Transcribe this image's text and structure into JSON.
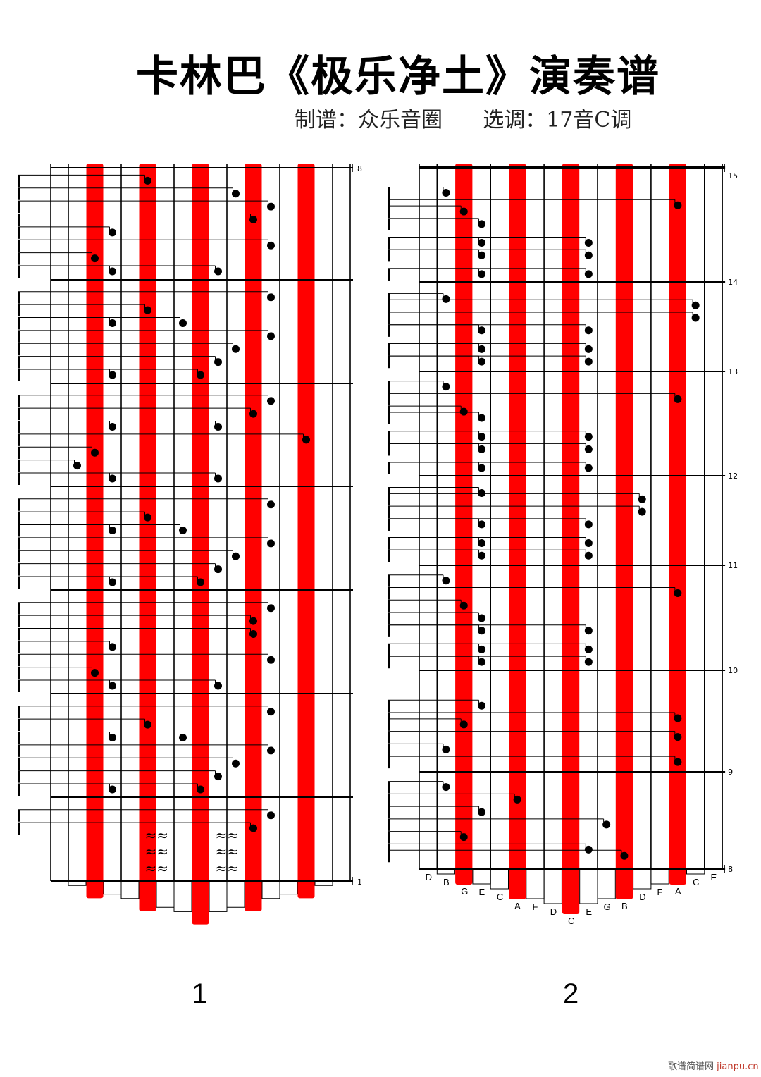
{
  "title": "卡林巴《极乐净土》演奏谱",
  "subtitle": {
    "arranger": "制谱：众乐音圈",
    "key": "选调：17音C调"
  },
  "colors": {
    "tine_highlight": "#ff0000",
    "line": "#000000",
    "note": "#000000"
  },
  "tine_labels": [
    "D",
    "B",
    "G",
    "E",
    "C",
    "A",
    "F",
    "D",
    "C",
    "E",
    "G",
    "B",
    "D",
    "F",
    "A",
    "C",
    "E"
  ],
  "highlighted_tines": [
    2,
    5,
    8,
    11,
    14
  ],
  "panels": [
    {
      "page_number": "1",
      "measure_top": "8",
      "measure_bottom": "1",
      "tremolo_tines": [
        5,
        9
      ],
      "tremolo_symbol": "≈",
      "notes": [
        [
          5,
          0.5
        ],
        [
          10,
          1
        ],
        [
          12,
          1.5
        ],
        [
          11,
          2
        ],
        [
          3,
          2.5
        ],
        [
          12,
          3
        ],
        [
          2,
          3.5
        ],
        [
          3,
          4
        ],
        [
          9,
          4
        ],
        [
          12,
          5
        ],
        [
          5,
          5.5
        ],
        [
          3,
          6
        ],
        [
          7,
          6
        ],
        [
          12,
          6.5
        ],
        [
          10,
          7
        ],
        [
          9,
          7.5
        ],
        [
          3,
          8
        ],
        [
          8,
          8
        ],
        [
          12,
          9
        ],
        [
          11,
          9.5
        ],
        [
          3,
          10
        ],
        [
          9,
          10
        ],
        [
          14,
          10.5
        ],
        [
          2,
          11
        ],
        [
          1,
          11.5
        ],
        [
          3,
          12
        ],
        [
          9,
          12
        ],
        [
          12,
          13
        ],
        [
          5,
          13.5
        ],
        [
          3,
          14
        ],
        [
          7,
          14
        ],
        [
          12,
          14.5
        ],
        [
          10,
          15
        ],
        [
          9,
          15.5
        ],
        [
          3,
          16
        ],
        [
          8,
          16
        ],
        [
          12,
          17
        ],
        [
          11,
          17.5
        ],
        [
          11,
          18
        ],
        [
          3,
          18.5
        ],
        [
          12,
          19
        ],
        [
          2,
          19.5
        ],
        [
          3,
          20
        ],
        [
          9,
          20
        ],
        [
          12,
          21
        ],
        [
          5,
          21.5
        ],
        [
          3,
          22
        ],
        [
          7,
          22
        ],
        [
          12,
          22.5
        ],
        [
          10,
          23
        ],
        [
          9,
          23.5
        ],
        [
          3,
          24
        ],
        [
          8,
          24
        ],
        [
          12,
          25
        ],
        [
          11,
          25.5
        ]
      ]
    },
    {
      "page_number": "2",
      "measure_labels": [
        "15",
        "14",
        "13",
        "12",
        "11",
        "10",
        "9",
        "8"
      ],
      "notes": [
        [
          1,
          1
        ],
        [
          14,
          1.5
        ],
        [
          2,
          1.75
        ],
        [
          3,
          2.25
        ],
        [
          3,
          3
        ],
        [
          9,
          3
        ],
        [
          3,
          3.5
        ],
        [
          9,
          3.5
        ],
        [
          3,
          4.25
        ],
        [
          9,
          4.25
        ],
        [
          1,
          5.25
        ],
        [
          15,
          5.5
        ],
        [
          15,
          6
        ],
        [
          3,
          6.5
        ],
        [
          9,
          6.5
        ],
        [
          3,
          7.25
        ],
        [
          9,
          7.25
        ],
        [
          3,
          7.75
        ],
        [
          9,
          7.75
        ],
        [
          1,
          8.75
        ],
        [
          14,
          9.25
        ],
        [
          2,
          9.75
        ],
        [
          3,
          10
        ],
        [
          3,
          10.75
        ],
        [
          9,
          10.75
        ],
        [
          3,
          11.25
        ],
        [
          9,
          11.25
        ],
        [
          3,
          12
        ],
        [
          9,
          12
        ],
        [
          3,
          13
        ],
        [
          12,
          13.25
        ],
        [
          12,
          13.75
        ],
        [
          3,
          14.25
        ],
        [
          9,
          14.25
        ],
        [
          3,
          15
        ],
        [
          9,
          15
        ],
        [
          3,
          15.5
        ],
        [
          9,
          15.5
        ],
        [
          1,
          16.5
        ],
        [
          14,
          17
        ],
        [
          2,
          17.5
        ],
        [
          3,
          18
        ],
        [
          3,
          18.5
        ],
        [
          9,
          18.5
        ],
        [
          3,
          19.25
        ],
        [
          9,
          19.25
        ],
        [
          3,
          19.75
        ],
        [
          9,
          19.75
        ],
        [
          3,
          21.5
        ],
        [
          14,
          22
        ],
        [
          2,
          22.25
        ],
        [
          14,
          22.75
        ],
        [
          1,
          23.25
        ],
        [
          14,
          23.75
        ],
        [
          1,
          24.75
        ],
        [
          5,
          25.25
        ],
        [
          3,
          25.75
        ],
        [
          10,
          26.25
        ],
        [
          2,
          26.75
        ],
        [
          9,
          27.25
        ],
        [
          11,
          27.5
        ]
      ]
    }
  ],
  "watermark": {
    "cn": "歌谱简谱网",
    "en": "jianpu.cn"
  }
}
